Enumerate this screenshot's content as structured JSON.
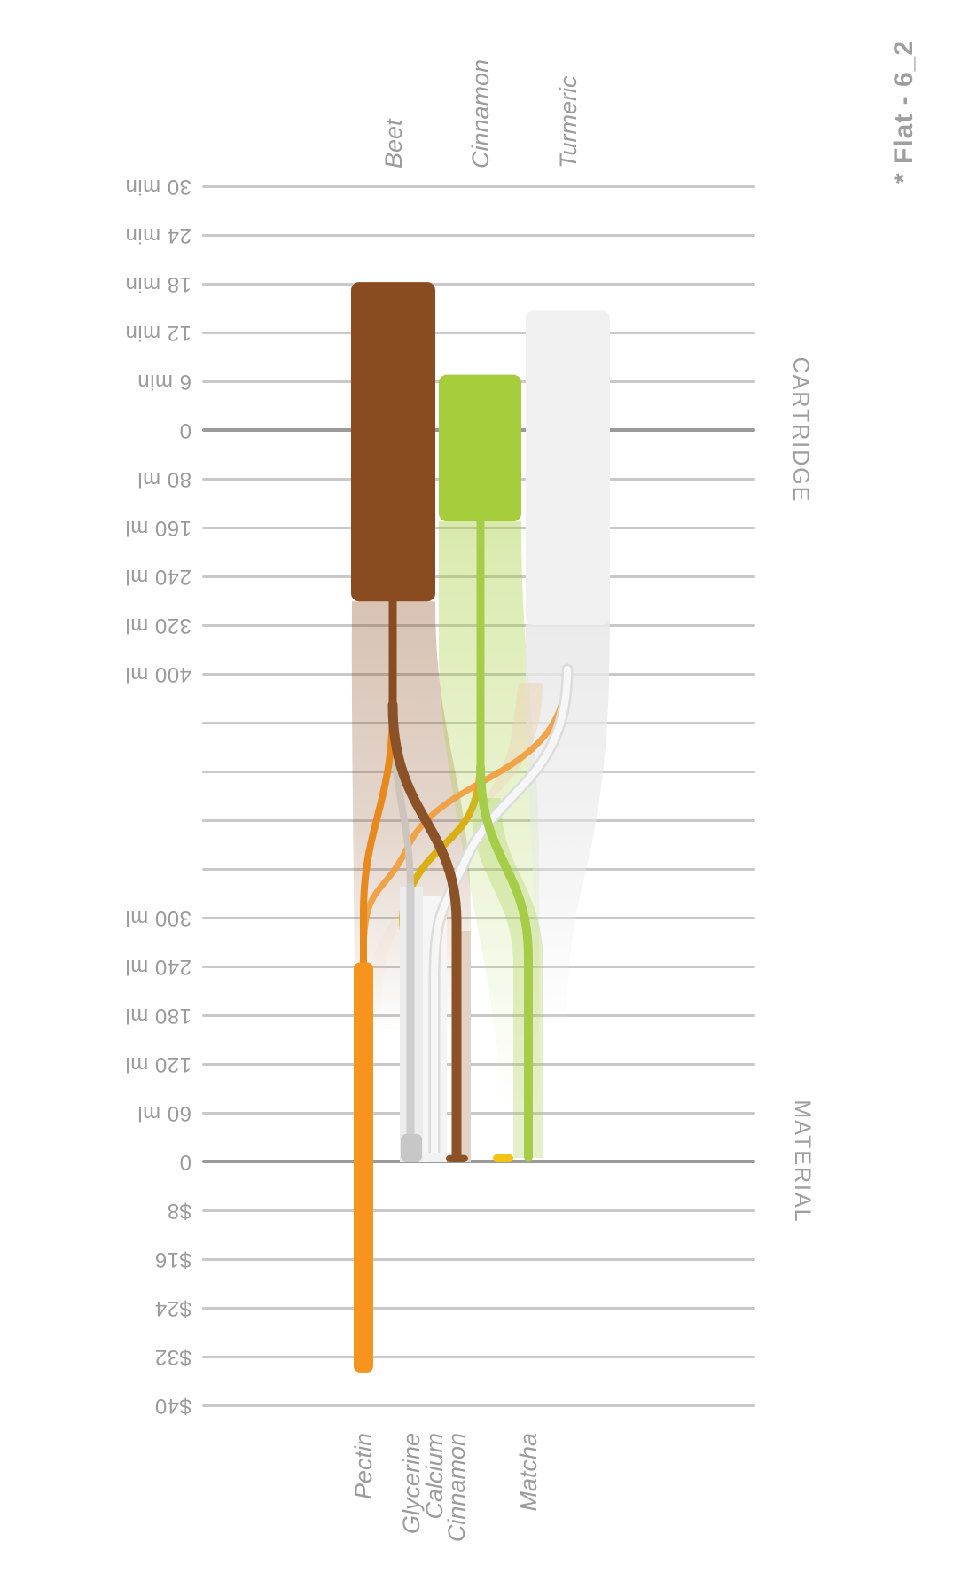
{
  "title": "* Flat - 6_2",
  "cartridge_axis": {
    "label": "CARTRIDGE",
    "ticks": [
      "30 min",
      "24 min",
      "18 min",
      "12 min",
      "6 min",
      "0",
      "80 ml",
      "160 ml",
      "240 ml",
      "320 ml",
      "400 ml"
    ],
    "unlabeled_gridlines_below": 4
  },
  "material_axis": {
    "label": "MATERIAL",
    "ticks": [
      "300 ml",
      "240 ml",
      "180 ml",
      "120 ml",
      "60 ml",
      "0",
      "$8",
      "$16",
      "$24",
      "$32",
      "$40"
    ]
  },
  "colors": {
    "beet": "#8a4b20",
    "cinnamon_cartridge": "#a5cd3c",
    "turmeric": "#f0f0f0",
    "pectin": "#f7941e",
    "pectin_line": "#e8891d",
    "glycerine": "#c7c7c7",
    "glycerine_line": "#cdcdcd",
    "calcium": "#efefef",
    "calcium_halo": "#dcdcdc",
    "cinnamon_material": "#8a5226",
    "matcha": "#a6cd49",
    "dark_yellow_flow": "#d9af13",
    "yellow_mark": "#f2c513",
    "tan_flow": "#cdc5bb",
    "label_gray": "#9b9b9b",
    "gridline": "#c9c9c9",
    "gridline_zero": "#9a9a9a"
  },
  "chart_data": {
    "type": "bar",
    "title": "* Flat - 6_2",
    "layout_note": "Portrait-rotated flow chart: all text rotated; top axis CARTRIDGE (minutes up / ml down from 0), bottom axis MATERIAL (ml up / $ down from 0); translucent flow bands connect cartridge bars to material columns",
    "axis_ranges": {
      "cartridge_minutes": [
        0,
        30
      ],
      "cartridge_ml": [
        0,
        400
      ],
      "material_ml": [
        0,
        300
      ],
      "material_usd": [
        0,
        40
      ]
    },
    "grid": "horizontal gridlines every tick, zero lines darker, 4 unlabeled lines between the two axes",
    "cartridges": [
      {
        "name": "Beet",
        "time_min": 18.2,
        "volume_ml": 281,
        "color": "#8a4b20"
      },
      {
        "name": "Cinnamon",
        "time_min": 6.8,
        "volume_ml": 150,
        "color": "#a5cd3c"
      },
      {
        "name": "Turmeric",
        "time_min": 14.7,
        "volume_ml": 320,
        "color": "#f0f0f0"
      }
    ],
    "materials": [
      {
        "name": "Pectin",
        "volume_ml": 245,
        "price_usd": 34.6,
        "color": "#f7941e"
      },
      {
        "name": "Glycerine",
        "volume_ml": 34,
        "price_usd": 0,
        "color": "#c7c7c7"
      },
      {
        "name": "Calcium",
        "volume_ml": 11,
        "price_usd": 0,
        "color": "#efefef"
      },
      {
        "name": "Cinnamon",
        "volume_ml": 8,
        "price_usd": 0,
        "color": "#8a5226"
      },
      {
        "name": "Matcha",
        "volume_ml": 9,
        "price_usd": 0,
        "color": "#a6cd49"
      }
    ],
    "unlabeled_marks": [
      {
        "name": "yellow-mark",
        "volume_ml": 9,
        "color": "#f2c513"
      }
    ],
    "flows": [
      {
        "from": "Beet",
        "to": "Pectin",
        "color": "#e8891d"
      },
      {
        "from": "Beet",
        "to": "Glycerine",
        "color": "#cdc5bb"
      },
      {
        "from": "Beet",
        "to": "Cinnamon",
        "color": "#8a5226"
      },
      {
        "from": "Cinnamon",
        "to": "Matcha",
        "color": "#a6cd49"
      },
      {
        "from": "Cinnamon",
        "to": "yellow-mark",
        "color": "#d9af13"
      },
      {
        "from": "Turmeric",
        "to": "Pectin",
        "color": "#f09c3a"
      },
      {
        "from": "Turmeric",
        "to": "Calcium",
        "color": "#efefef"
      }
    ],
    "legend_position": "none"
  }
}
